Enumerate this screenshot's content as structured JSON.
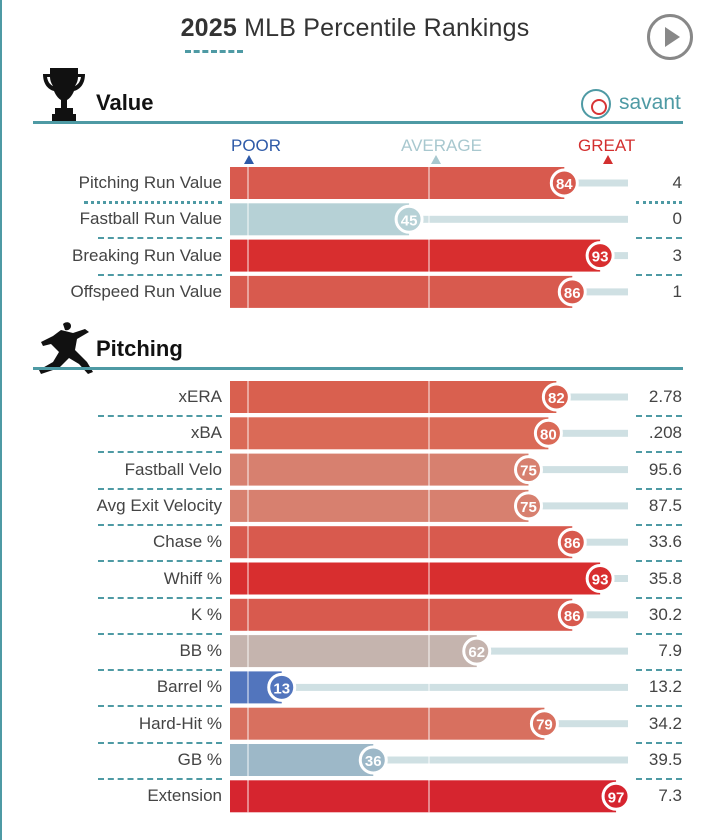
{
  "header": {
    "title_year": "2025",
    "title_rest": "MLB Percentile Rankings"
  },
  "icons": {
    "play": "play-icon",
    "trophy": "trophy-icon",
    "pitcher": "pitcher-silhouette-icon",
    "savant_logo": "baseball-icon"
  },
  "savant": {
    "label": "savant"
  },
  "legend": {
    "poor": "POOR",
    "average": "AVERAGE",
    "great": "GREAT",
    "poor_color": "#2e5aa8",
    "average_color": "#a8c8cf",
    "great_color": "#d32f2f"
  },
  "chart_data": [
    {
      "type": "bar",
      "title": "Value",
      "xlim": [
        0,
        100
      ],
      "reference_lines": [
        0,
        50,
        100
      ],
      "categories": [
        "Pitching Run Value",
        "Fastball Run Value",
        "Breaking Run Value",
        "Offspeed Run Value"
      ],
      "percentiles": [
        84,
        45,
        93,
        86
      ],
      "values": [
        "4",
        "0",
        "3",
        "1"
      ],
      "colors": [
        "#d85a4e",
        "#b6d1d6",
        "#d82e2f",
        "#d85a4e"
      ]
    },
    {
      "type": "bar",
      "title": "Pitching",
      "xlim": [
        0,
        100
      ],
      "reference_lines": [
        0,
        50,
        100
      ],
      "categories": [
        "xERA",
        "xBA",
        "Fastball Velo",
        "Avg Exit Velocity",
        "Chase %",
        "Whiff %",
        "K %",
        "BB %",
        "Barrel %",
        "Hard-Hit %",
        "GB %",
        "Extension"
      ],
      "percentiles": [
        82,
        80,
        75,
        75,
        86,
        93,
        86,
        62,
        13,
        79,
        36,
        97
      ],
      "values": [
        "2.78",
        ".208",
        "95.6",
        "87.5",
        "33.6",
        "35.8",
        "30.2",
        "7.9",
        "13.2",
        "34.2",
        "39.5",
        "7.3"
      ],
      "colors": [
        "#d9604f",
        "#da6a57",
        "#d7806f",
        "#d7806f",
        "#d85a4e",
        "#d82e2f",
        "#d85a4e",
        "#c5b4ae",
        "#5275bd",
        "#d8705f",
        "#9db8c8",
        "#d6252f"
      ]
    }
  ]
}
